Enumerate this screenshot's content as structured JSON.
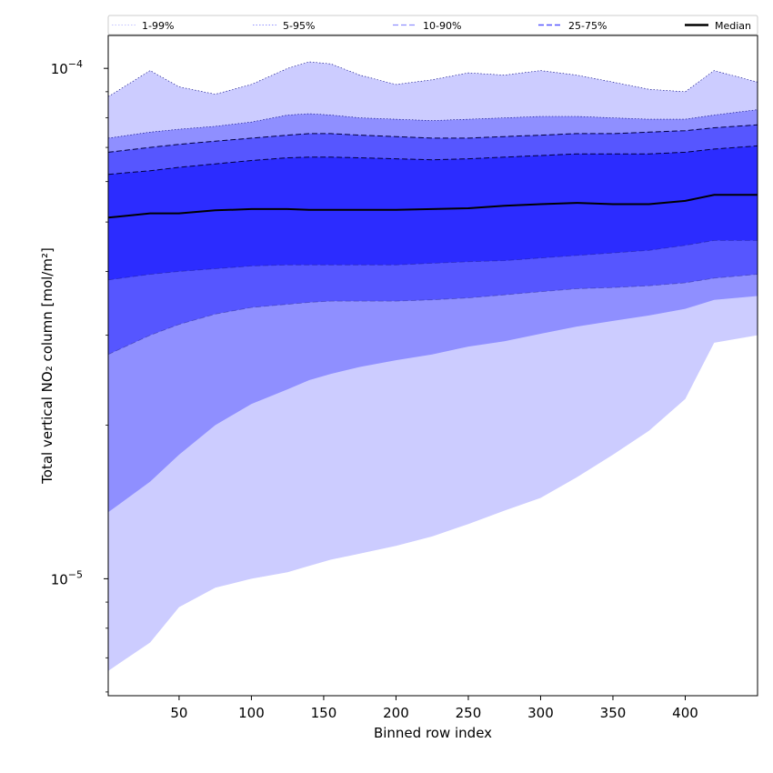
{
  "chart_data": {
    "type": "area",
    "xlabel": "Binned row index",
    "ylabel": "Total vertical NO₂ column [mol/m²]",
    "xlim": [
      1,
      450
    ],
    "ylim": [
      5.9e-06,
      0.000116
    ],
    "y_scale": "log",
    "x_ticks": [
      50,
      100,
      150,
      200,
      250,
      300,
      350,
      400
    ],
    "y_tick_labels": [
      {
        "value": 0.0001,
        "mantissa": "10",
        "exp": "−4"
      },
      {
        "value": 1e-05,
        "mantissa": "10",
        "exp": "−5"
      }
    ],
    "grid": false,
    "legend_position": "top",
    "x": [
      1,
      30,
      50,
      75,
      100,
      125,
      140,
      155,
      175,
      200,
      225,
      250,
      275,
      300,
      325,
      350,
      375,
      400,
      420,
      450
    ],
    "series": [
      {
        "name": "1-99%",
        "style": "dotted",
        "color": "#ccccff",
        "lower": [
          6.6e-06,
          7.5e-06,
          8.8e-06,
          9.6e-06,
          1e-05,
          1.03e-05,
          1.06e-05,
          1.09e-05,
          1.12e-05,
          1.16e-05,
          1.21e-05,
          1.28e-05,
          1.36e-05,
          1.44e-05,
          1.58e-05,
          1.75e-05,
          1.95e-05,
          2.25e-05,
          2.9e-05,
          3e-05
        ],
        "upper": [
          8.8e-05,
          9.9e-05,
          9.2e-05,
          8.9e-05,
          9.3e-05,
          0.0001,
          0.000103,
          0.000102,
          9.7e-05,
          9.3e-05,
          9.5e-05,
          9.8e-05,
          9.7e-05,
          9.9e-05,
          9.7e-05,
          9.4e-05,
          9.1e-05,
          9e-05,
          9.9e-05,
          9.4e-05
        ]
      },
      {
        "name": "5-95%",
        "style": "dotted",
        "color": "#8f8fff",
        "lower": [
          1.35e-05,
          1.55e-05,
          1.75e-05,
          2e-05,
          2.2e-05,
          2.35e-05,
          2.45e-05,
          2.52e-05,
          2.6e-05,
          2.68e-05,
          2.75e-05,
          2.85e-05,
          2.92e-05,
          3.02e-05,
          3.12e-05,
          3.2e-05,
          3.28e-05,
          3.38e-05,
          3.52e-05,
          3.58e-05
        ],
        "upper": [
          7.3e-05,
          7.5e-05,
          7.6e-05,
          7.7e-05,
          7.85e-05,
          8.1e-05,
          8.15e-05,
          8.1e-05,
          8e-05,
          7.95e-05,
          7.9e-05,
          7.95e-05,
          8e-05,
          8.05e-05,
          8.05e-05,
          8e-05,
          7.95e-05,
          7.95e-05,
          8.1e-05,
          8.3e-05
        ]
      },
      {
        "name": "10-90%",
        "style": "dashed",
        "color": "#5656ff",
        "lower": [
          2.75e-05,
          3e-05,
          3.15e-05,
          3.3e-05,
          3.4e-05,
          3.45e-05,
          3.48e-05,
          3.5e-05,
          3.5e-05,
          3.5e-05,
          3.52e-05,
          3.55e-05,
          3.6e-05,
          3.65e-05,
          3.7e-05,
          3.72e-05,
          3.75e-05,
          3.8e-05,
          3.88e-05,
          3.95e-05
        ],
        "upper": [
          6.85e-05,
          7e-05,
          7.1e-05,
          7.2e-05,
          7.3e-05,
          7.4e-05,
          7.45e-05,
          7.45e-05,
          7.4e-05,
          7.35e-05,
          7.3e-05,
          7.3e-05,
          7.35e-05,
          7.4e-05,
          7.45e-05,
          7.45e-05,
          7.5e-05,
          7.55e-05,
          7.65e-05,
          7.75e-05
        ]
      },
      {
        "name": "25-75%",
        "style": "dashed",
        "color": "#2c2cff",
        "lower": [
          3.85e-05,
          3.95e-05,
          4e-05,
          4.05e-05,
          4.1e-05,
          4.12e-05,
          4.12e-05,
          4.12e-05,
          4.12e-05,
          4.12e-05,
          4.15e-05,
          4.18e-05,
          4.2e-05,
          4.25e-05,
          4.3e-05,
          4.35e-05,
          4.4e-05,
          4.5e-05,
          4.6e-05,
          4.6e-05
        ],
        "upper": [
          6.2e-05,
          6.3e-05,
          6.4e-05,
          6.5e-05,
          6.6e-05,
          6.68e-05,
          6.7e-05,
          6.7e-05,
          6.68e-05,
          6.65e-05,
          6.62e-05,
          6.65e-05,
          6.7e-05,
          6.75e-05,
          6.8e-05,
          6.8e-05,
          6.8e-05,
          6.85e-05,
          6.95e-05,
          7.05e-05
        ]
      },
      {
        "name": "Median",
        "style": "solid",
        "color": "#000000",
        "values": [
          5.1e-05,
          5.2e-05,
          5.2e-05,
          5.27e-05,
          5.3e-05,
          5.3e-05,
          5.28e-05,
          5.28e-05,
          5.28e-05,
          5.28e-05,
          5.3e-05,
          5.32e-05,
          5.38e-05,
          5.42e-05,
          5.45e-05,
          5.42e-05,
          5.42e-05,
          5.5e-05,
          5.65e-05,
          5.65e-05
        ]
      }
    ]
  }
}
